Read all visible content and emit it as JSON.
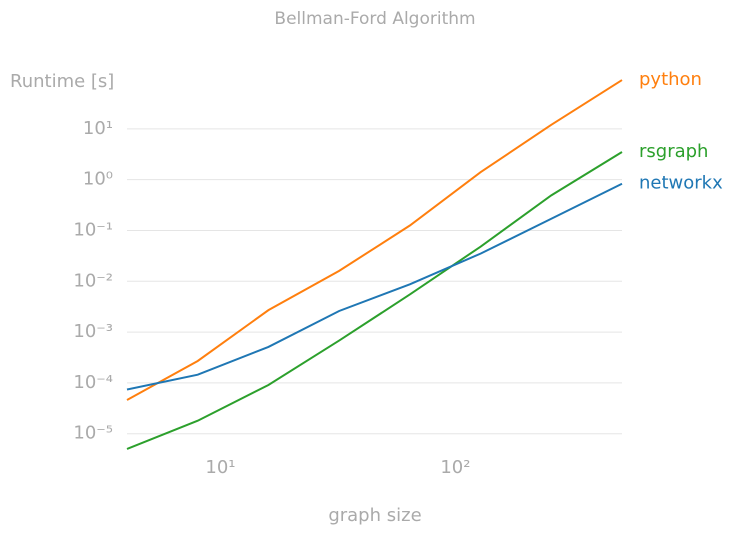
{
  "chart_data": {
    "type": "line",
    "title": "Bellman-Ford Algorithm",
    "y_label": "Runtime [s]",
    "x_label": "graph size",
    "log_x": true,
    "log_y": true,
    "grid": true,
    "x": [
      4,
      8,
      16,
      32,
      64,
      128,
      256,
      512
    ],
    "series": [
      {
        "name": "python",
        "color": "#ff7f0e",
        "values": [
          4.6e-05,
          0.00027,
          0.0027,
          0.016,
          0.125,
          1.4,
          12,
          91
        ]
      },
      {
        "name": "rsgraph",
        "color": "#2ca02c",
        "values": [
          5e-06,
          1.8e-05,
          9.1e-05,
          0.00068,
          0.0055,
          0.048,
          0.49,
          3.5
        ]
      },
      {
        "name": "networkx",
        "color": "#1f77b4",
        "values": [
          7.4e-05,
          0.000145,
          0.00051,
          0.0026,
          0.0087,
          0.035,
          0.17,
          0.83
        ]
      }
    ],
    "xlim": [
      4,
      512
    ],
    "ylim": [
      5e-06,
      100
    ],
    "xticks": [
      {
        "value": 10,
        "label": "10¹"
      },
      {
        "value": 100,
        "label": "10²"
      }
    ],
    "yticks": [
      {
        "value": 10,
        "label": "10¹"
      },
      {
        "value": 1,
        "label": "10⁰"
      },
      {
        "value": 0.1,
        "label": "10⁻¹"
      },
      {
        "value": 0.01,
        "label": "10⁻²"
      },
      {
        "value": 0.001,
        "label": "10⁻³"
      },
      {
        "value": 0.0001,
        "label": "10⁻⁴"
      },
      {
        "value": 1e-05,
        "label": "10⁻⁵"
      }
    ]
  }
}
